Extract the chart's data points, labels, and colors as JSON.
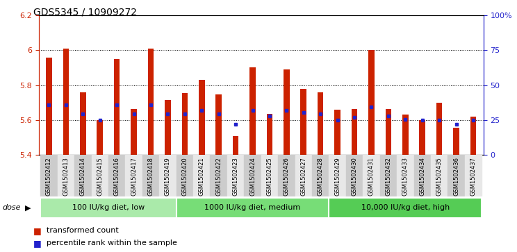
{
  "title": "GDS5345 / 10909272",
  "samples": [
    "GSM1502412",
    "GSM1502413",
    "GSM1502414",
    "GSM1502415",
    "GSM1502416",
    "GSM1502417",
    "GSM1502418",
    "GSM1502419",
    "GSM1502420",
    "GSM1502421",
    "GSM1502422",
    "GSM1502423",
    "GSM1502424",
    "GSM1502425",
    "GSM1502426",
    "GSM1502427",
    "GSM1502428",
    "GSM1502429",
    "GSM1502430",
    "GSM1502431",
    "GSM1502432",
    "GSM1502433",
    "GSM1502434",
    "GSM1502435",
    "GSM1502436",
    "GSM1502437"
  ],
  "bar_tops": [
    5.955,
    6.01,
    5.76,
    5.6,
    5.95,
    5.665,
    6.01,
    5.715,
    5.755,
    5.83,
    5.745,
    5.51,
    5.9,
    5.635,
    5.89,
    5.78,
    5.76,
    5.66,
    5.665,
    6.0,
    5.665,
    5.63,
    5.6,
    5.7,
    5.555,
    5.62
  ],
  "blue_dot_y": [
    5.685,
    5.685,
    5.635,
    5.6,
    5.685,
    5.635,
    5.685,
    5.635,
    5.635,
    5.655,
    5.635,
    5.575,
    5.655,
    5.625,
    5.655,
    5.645,
    5.635,
    5.6,
    5.615,
    5.675,
    5.625,
    5.605,
    5.6,
    5.6,
    5.575,
    5.6
  ],
  "y_min": 5.4,
  "y_max": 6.2,
  "bar_color": "#cc2200",
  "dot_color": "#2222cc",
  "group_ranges": [
    [
      0,
      7
    ],
    [
      8,
      16
    ],
    [
      17,
      25
    ]
  ],
  "group_labels": [
    "100 IU/kg diet, low",
    "1000 IU/kg diet, medium",
    "10,000 IU/kg diet, high"
  ],
  "group_colors": [
    "#aaeaaa",
    "#77dd77",
    "#55cc55"
  ],
  "legend_items": [
    {
      "label": "transformed count",
      "color": "#cc2200"
    },
    {
      "label": "percentile rank within the sample",
      "color": "#2222cc"
    }
  ]
}
